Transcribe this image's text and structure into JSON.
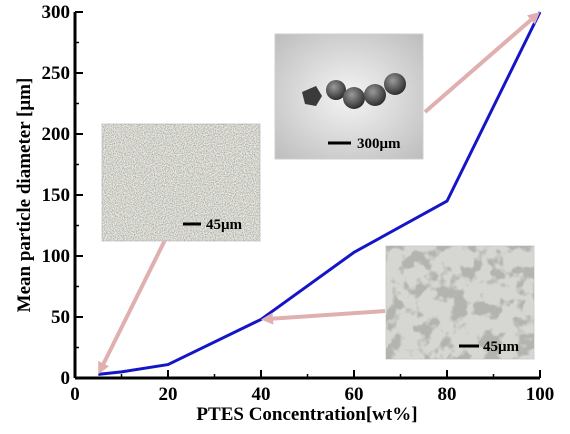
{
  "chart_data": {
    "type": "line",
    "xlabel": "PTES Concentration[wt%]",
    "ylabel": "Mean particle diameter [μm]",
    "xlim": [
      0,
      100
    ],
    "ylim": [
      0,
      300
    ],
    "xticks": [
      "0",
      "20",
      "40",
      "60",
      "80",
      "100"
    ],
    "yticks": [
      "0",
      "50",
      "100",
      "150",
      "200",
      "250",
      "300"
    ],
    "grid": false,
    "series": [
      {
        "color": "#1515c8",
        "x": [
          5,
          10,
          20,
          40,
          60,
          80,
          100
        ],
        "y": [
          3,
          5,
          11,
          48,
          103,
          145,
          300
        ]
      }
    ],
    "insets": [
      {
        "scale_label": "45μm",
        "points_to": [
          5,
          3
        ]
      },
      {
        "scale_label": "300μm",
        "points_to": [
          100,
          300
        ]
      },
      {
        "scale_label": "45μm",
        "points_to": [
          40,
          48
        ]
      }
    ],
    "colors": {
      "line": "#1515c8",
      "arrow": "#e0b0b0",
      "axis": "#000000"
    }
  }
}
